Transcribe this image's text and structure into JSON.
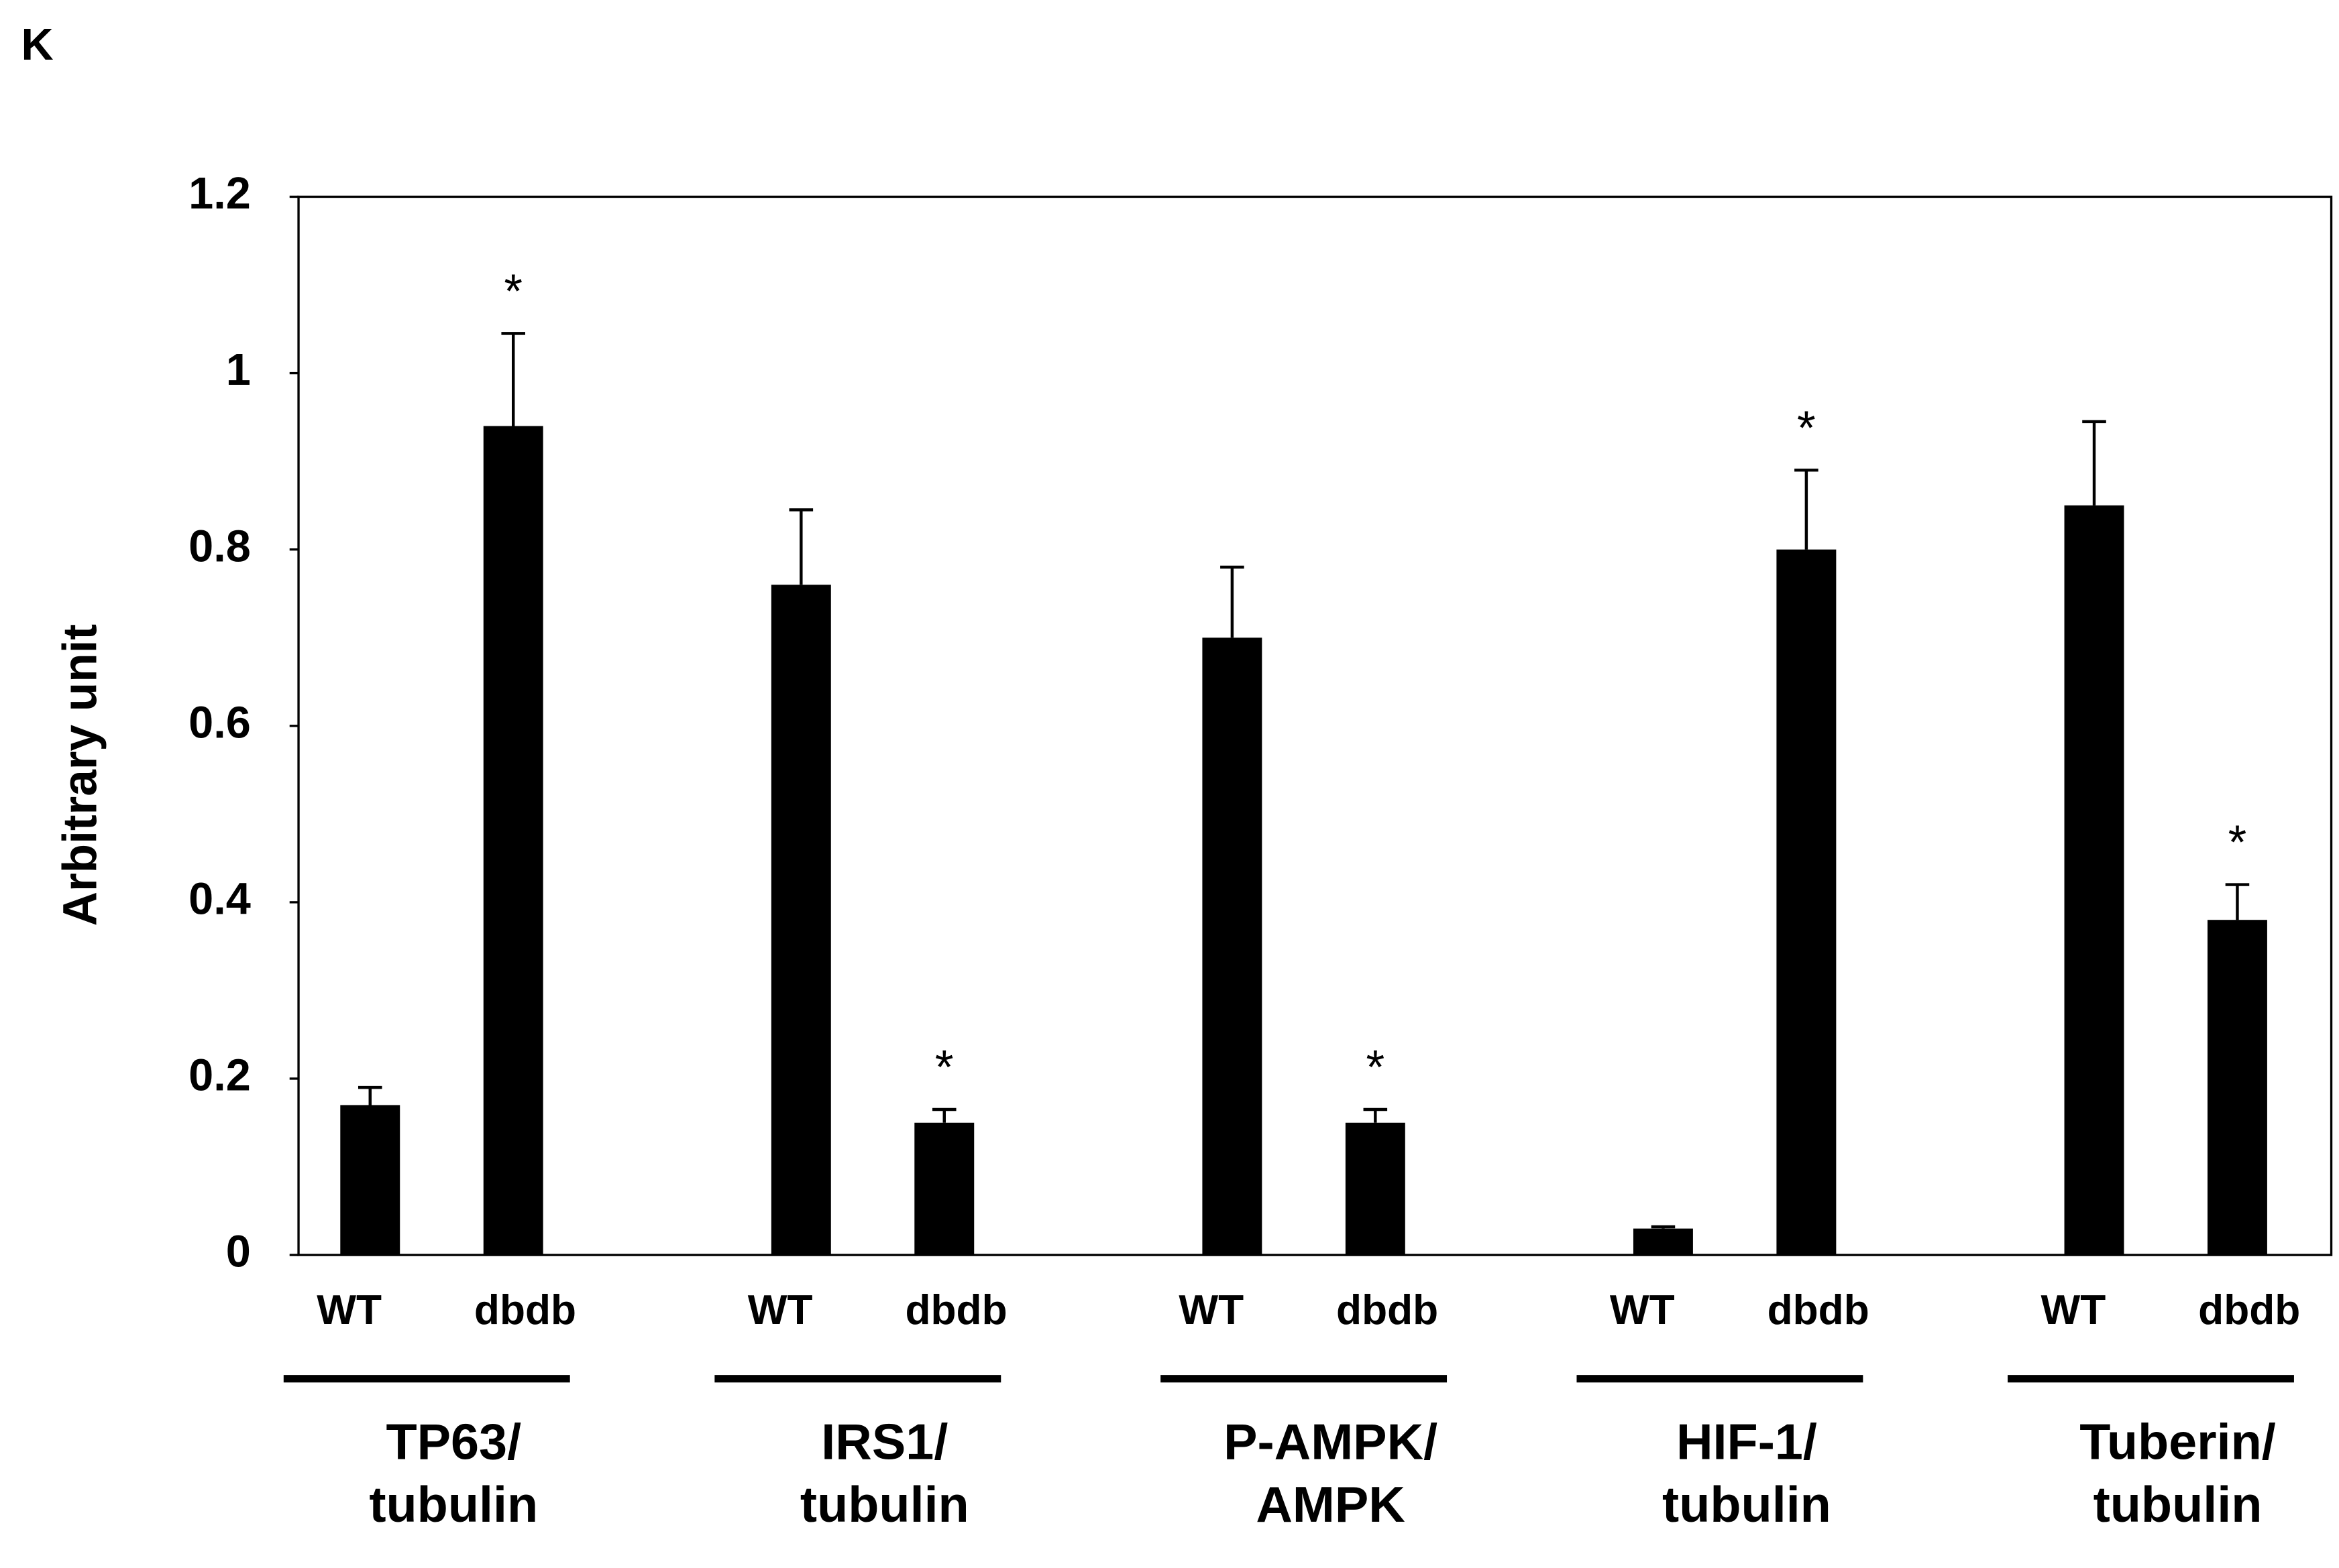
{
  "chart_data": {
    "type": "bar",
    "panel_label": "K",
    "ylabel": "Arbitrary unit",
    "categories": [
      "WT",
      "dbdb",
      "WT",
      "dbdb",
      "WT",
      "dbdb",
      "WT",
      "dbdb",
      "WT",
      "dbdb"
    ],
    "groups": [
      [
        "TP63/",
        "tubulin"
      ],
      [
        "IRS1/",
        "tubulin"
      ],
      [
        "P-AMPK/",
        "AMPK"
      ],
      [
        "HIF-1/",
        "tubulin"
      ],
      [
        "Tuberin/",
        "tubulin"
      ]
    ],
    "values": [
      0.17,
      0.94,
      0.76,
      0.15,
      0.7,
      0.15,
      0.03,
      0.8,
      0.85,
      0.38
    ],
    "errors": [
      0.02,
      0.105,
      0.085,
      0.015,
      0.08,
      0.015,
      0.002,
      0.09,
      0.095,
      0.04
    ],
    "significance": [
      null,
      "*",
      null,
      "*",
      null,
      "*",
      null,
      "*",
      null,
      "*"
    ],
    "color": "#000000",
    "ylim": [
      0,
      1.2
    ],
    "yticks": [
      0,
      0.2,
      0.4,
      0.6,
      0.8,
      1,
      1.2
    ]
  }
}
